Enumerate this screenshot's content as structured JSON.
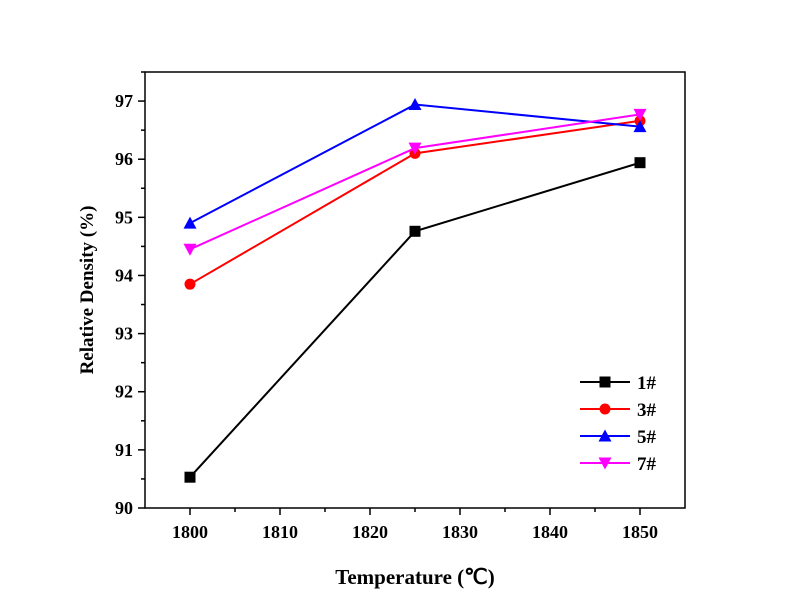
{
  "chart_data": {
    "type": "line",
    "title": "",
    "xlabel": "Temperature (℃)",
    "ylabel": "Relative  Density (%)",
    "xlim": [
      1795,
      1855
    ],
    "ylim": [
      90,
      97.5
    ],
    "xticks": [
      1800,
      1810,
      1820,
      1830,
      1840,
      1850
    ],
    "yticks": [
      90,
      91,
      92,
      93,
      94,
      95,
      96,
      97
    ],
    "grid": false,
    "legend_position": "bottom-right",
    "x": [
      1800,
      1825,
      1850
    ],
    "series": [
      {
        "name": "1#",
        "color": "#000000",
        "marker": "square",
        "values": [
          90.53,
          94.76,
          95.94
        ]
      },
      {
        "name": "3#",
        "color": "#ff0000",
        "marker": "circle",
        "values": [
          93.85,
          96.1,
          96.66
        ]
      },
      {
        "name": "5#",
        "color": "#0000ff",
        "marker": "triangle-up",
        "values": [
          94.9,
          96.94,
          96.56
        ]
      },
      {
        "name": "7#",
        "color": "#ff00ff",
        "marker": "triangle-down",
        "values": [
          94.45,
          96.19,
          96.77
        ]
      }
    ]
  }
}
